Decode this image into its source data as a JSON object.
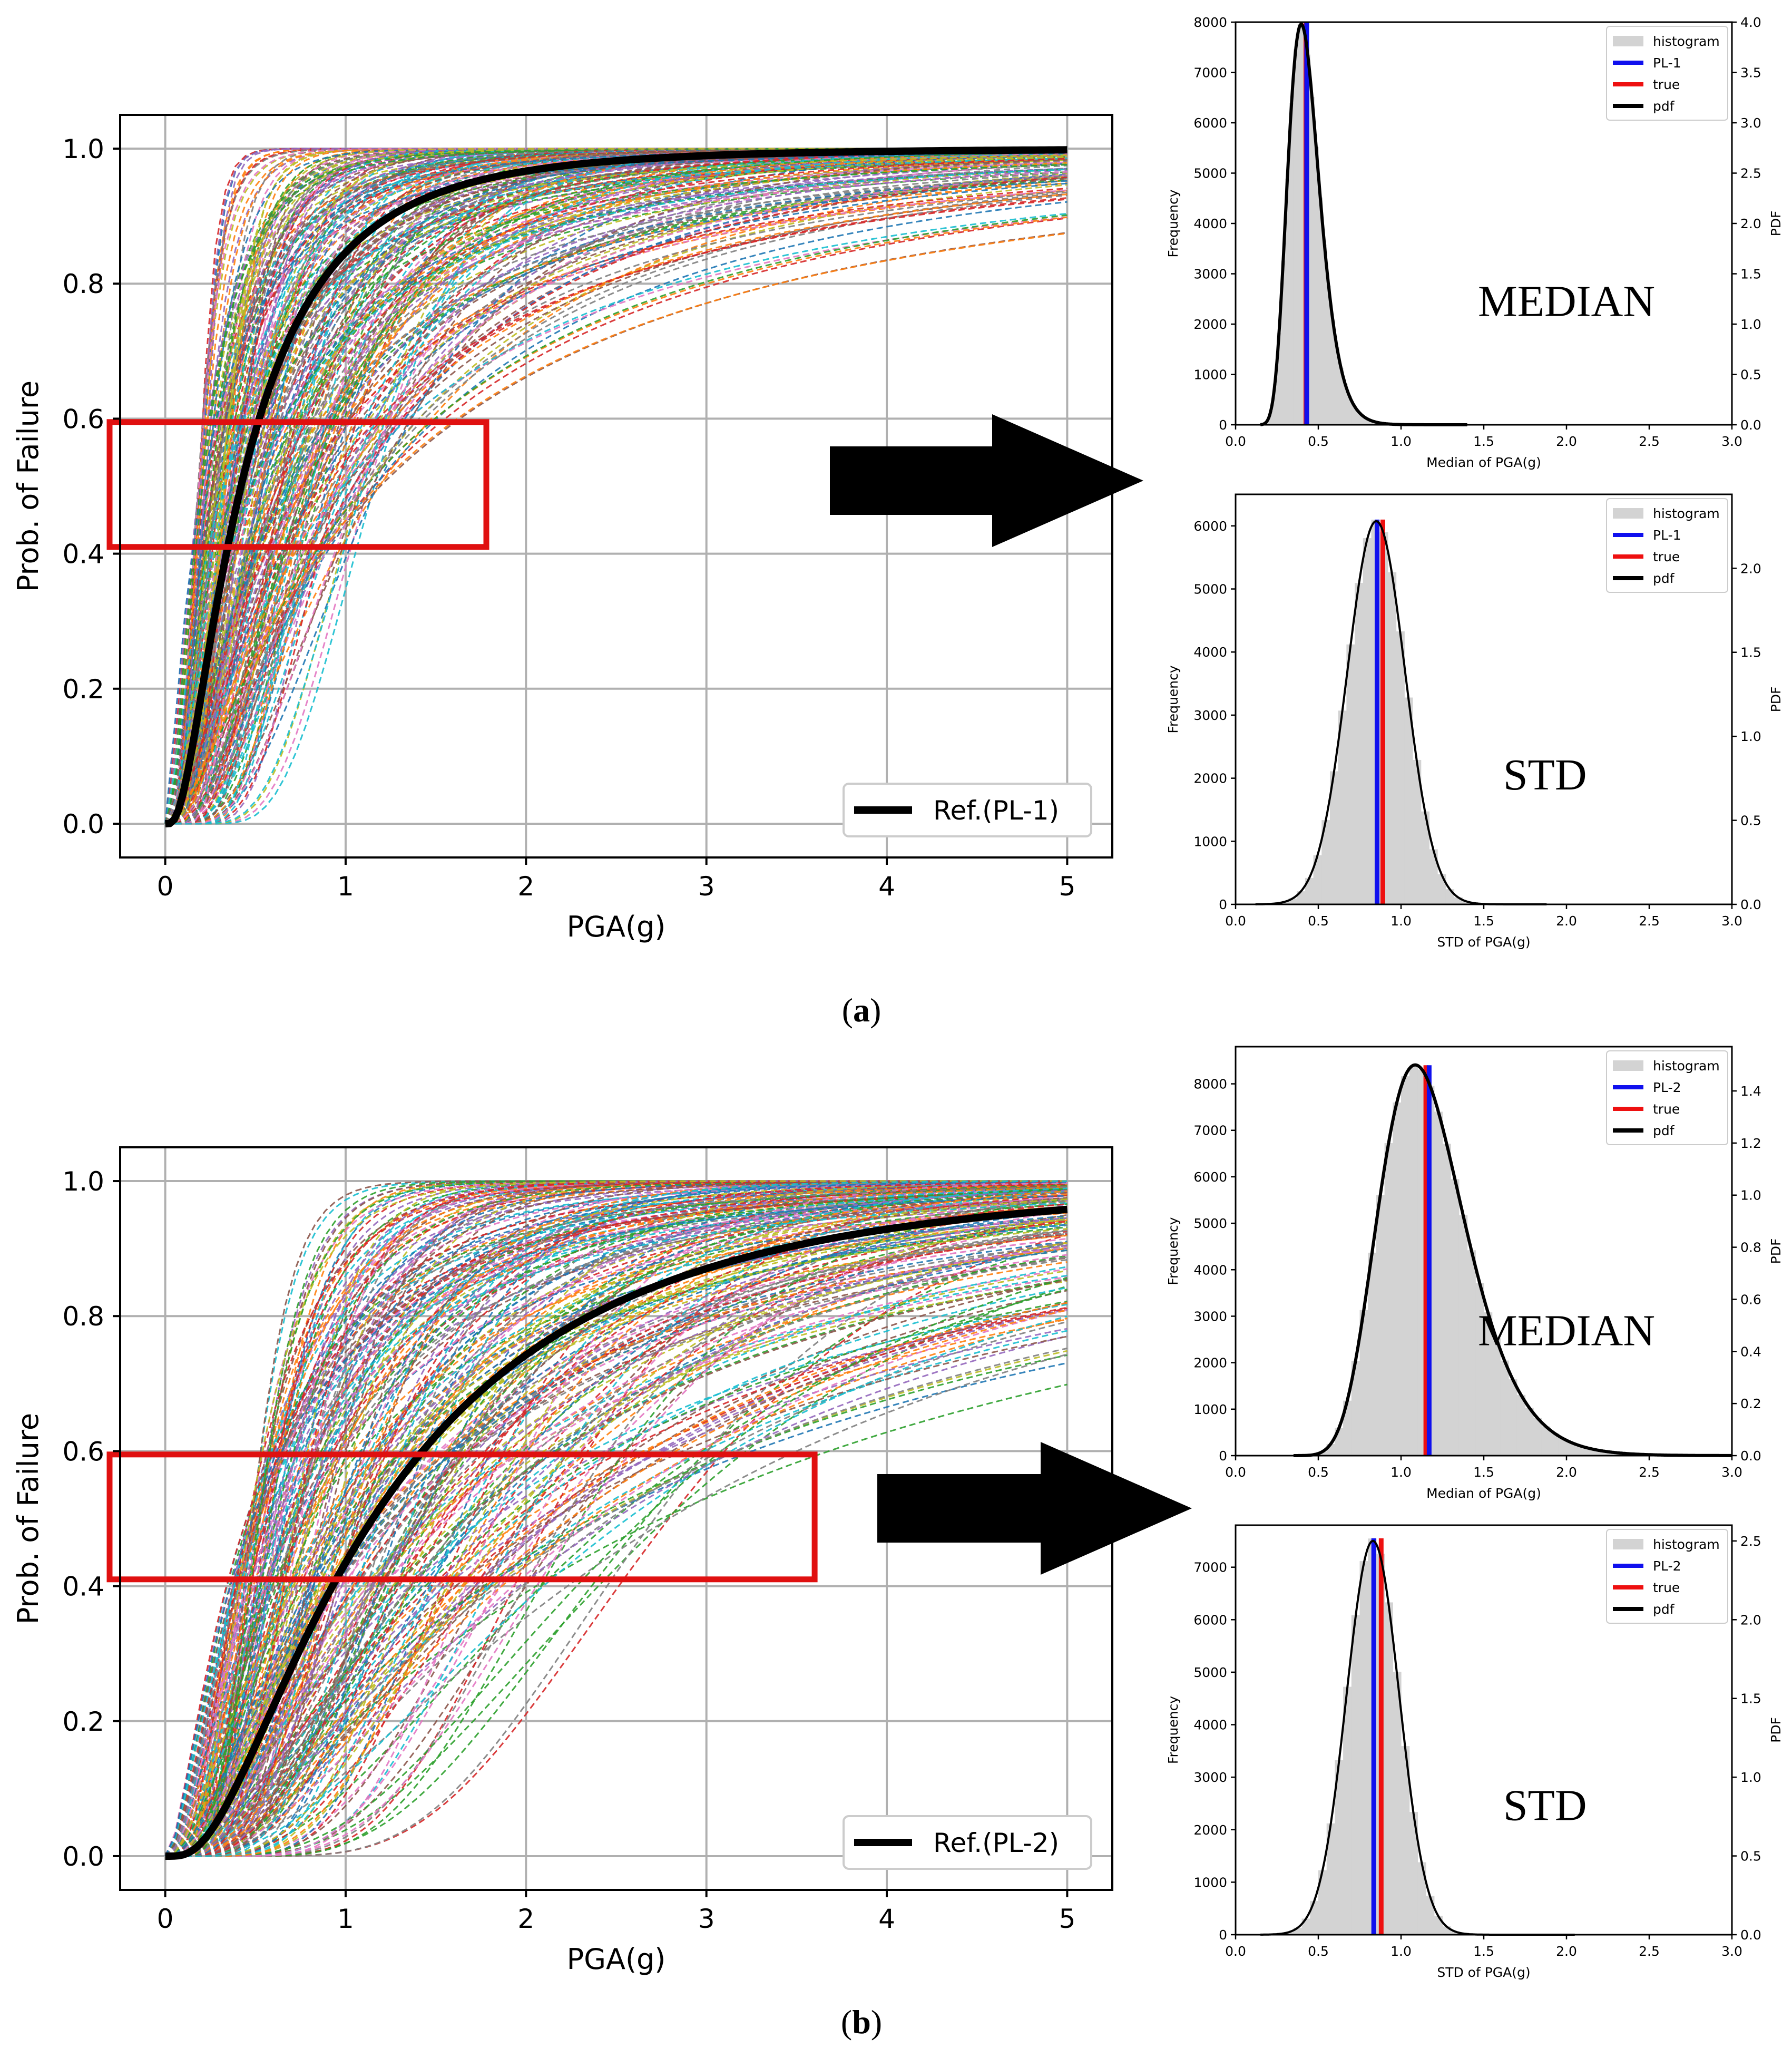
{
  "captions": {
    "a": {
      "open": "(",
      "letter": "a",
      "close": ")"
    },
    "b": {
      "open": "(",
      "letter": "b",
      "close": ")"
    }
  },
  "colors": {
    "ref": "#000000",
    "box": "#e01010",
    "arrow": "#000000",
    "hist": "#d3d3d3",
    "pl": "#1010ee",
    "true": "#ee1010",
    "pdf": "#000000",
    "grid": "#b0b0b0",
    "palette": [
      "#1f77b4",
      "#ff7f0e",
      "#2ca02c",
      "#d62728",
      "#9467bd",
      "#8c564b",
      "#e377c2",
      "#7f7f7f",
      "#bcbd22",
      "#17becf"
    ]
  },
  "chart_data": [
    {
      "id": "fragility-pl1",
      "panel": "a",
      "type": "line",
      "xlabel": "PGA(g)",
      "ylabel": "Prob. of Failure",
      "xlim": [
        -0.25,
        5.25
      ],
      "ylim": [
        -0.05,
        1.05
      ],
      "xticks": [
        0,
        1,
        2,
        3,
        4,
        5
      ],
      "yticks": [
        0.0,
        0.2,
        0.4,
        0.6,
        0.8,
        1.0
      ],
      "xtick_labels": [
        "0",
        "1",
        "2",
        "3",
        "4",
        "5"
      ],
      "ytick_labels": [
        "0.0",
        "0.2",
        "0.4",
        "0.6",
        "0.8",
        "1.0"
      ],
      "grid": true,
      "legend": "lower-right",
      "reference": {
        "name": "Ref.(PL-1)",
        "median": 0.42,
        "beta": 0.85
      },
      "ensemble": {
        "count": 260,
        "median_range": [
          0.18,
          1.2
        ],
        "beta_range": [
          0.35,
          1.3
        ],
        "seed": 11
      },
      "highlight_box": {
        "x": [
          -0.25,
          1.78
        ],
        "y": [
          0.41,
          0.595
        ]
      },
      "x_max": 5
    },
    {
      "id": "hist-median-pl1",
      "panel": "a",
      "type": "bar",
      "xlabel": "Median of PGA(g)",
      "ylabel": "Frequency",
      "y2label": "PDF",
      "xlim": [
        0.0,
        3.0
      ],
      "ylim": [
        0,
        8000
      ],
      "y2lim": [
        0,
        4.0
      ],
      "xticks": [
        0.0,
        0.5,
        1.0,
        1.5,
        2.0,
        2.5,
        3.0
      ],
      "xtick_labels": [
        "0.0",
        "0.5",
        "1.0",
        "1.5",
        "2.0",
        "2.5",
        "3.0"
      ],
      "yticks": [
        0,
        1000,
        2000,
        3000,
        4000,
        5000,
        6000,
        7000,
        8000
      ],
      "ytick_labels": [
        "0",
        "1000",
        "2000",
        "3000",
        "4000",
        "5000",
        "6000",
        "7000",
        "8000"
      ],
      "y2ticks": [
        0.0,
        0.5,
        1.0,
        1.5,
        2.0,
        2.5,
        3.0,
        3.5,
        4.0
      ],
      "y2tick_labels": [
        "0.0",
        "0.5",
        "1.0",
        "1.5",
        "2.0",
        "2.5",
        "3.0",
        "3.5",
        "4.0"
      ],
      "dist": {
        "kind": "lognormal",
        "median": 0.42,
        "sigma": 0.24,
        "peak_freq": 8000,
        "pdf_peak": 3.98,
        "range": [
          0.15,
          1.4
        ]
      },
      "bin_width": 0.025,
      "pl_value": 0.43,
      "true_value": 0.425,
      "legend": [
        "histogram",
        "PL-1",
        "true",
        "pdf"
      ],
      "label": "MEDIAN",
      "pdf_width": 6
    },
    {
      "id": "hist-std-pl1",
      "panel": "a",
      "type": "bar",
      "xlabel": "STD of PGA(g)",
      "ylabel": "Frequency",
      "y2label": "PDF",
      "xlim": [
        0.0,
        3.0
      ],
      "ylim": [
        0,
        6500
      ],
      "y2lim": [
        0,
        2.44
      ],
      "xticks": [
        0.0,
        0.5,
        1.0,
        1.5,
        2.0,
        2.5,
        3.0
      ],
      "xtick_labels": [
        "0.0",
        "0.5",
        "1.0",
        "1.5",
        "2.0",
        "2.5",
        "3.0"
      ],
      "yticks": [
        0,
        1000,
        2000,
        3000,
        4000,
        5000,
        6000
      ],
      "ytick_labels": [
        "0",
        "1000",
        "2000",
        "3000",
        "4000",
        "5000",
        "6000"
      ],
      "y2ticks": [
        0.0,
        0.5,
        1.0,
        1.5,
        2.0
      ],
      "y2tick_labels": [
        "0.0",
        "0.5",
        "1.0",
        "1.5",
        "2.0"
      ],
      "dist": {
        "kind": "normal",
        "mean": 0.85,
        "sd": 0.175,
        "peak_freq": 6100,
        "pdf_peak": 2.28,
        "range": [
          0.12,
          1.88
        ]
      },
      "bin_width": 0.05,
      "pl_value": 0.855,
      "true_value": 0.89,
      "legend": [
        "histogram",
        "PL-1",
        "true",
        "pdf"
      ],
      "label": "STD",
      "pdf_width": 4
    },
    {
      "id": "fragility-pl2",
      "panel": "b",
      "type": "line",
      "xlabel": "PGA(g)",
      "ylabel": "Prob. of Failure",
      "xlim": [
        -0.25,
        5.25
      ],
      "ylim": [
        -0.05,
        1.05
      ],
      "xticks": [
        0,
        1,
        2,
        3,
        4,
        5
      ],
      "yticks": [
        0.0,
        0.2,
        0.4,
        0.6,
        0.8,
        1.0
      ],
      "xtick_labels": [
        "0",
        "1",
        "2",
        "3",
        "4",
        "5"
      ],
      "ytick_labels": [
        "0.0",
        "0.2",
        "0.4",
        "0.6",
        "0.8",
        "1.0"
      ],
      "grid": true,
      "legend": "lower-right",
      "reference": {
        "name": "Ref.(PL-2)",
        "median": 1.15,
        "beta": 0.85
      },
      "ensemble": {
        "count": 260,
        "median_range": [
          0.45,
          2.8
        ],
        "beta_range": [
          0.35,
          1.2
        ],
        "seed": 23
      },
      "highlight_box": {
        "x": [
          -0.25,
          3.6
        ],
        "y": [
          0.41,
          0.595
        ]
      },
      "x_max": 5
    },
    {
      "id": "hist-median-pl2",
      "panel": "b",
      "type": "bar",
      "xlabel": "Median of PGA(g)",
      "ylabel": "Frequency",
      "y2label": "PDF",
      "xlim": [
        0.0,
        3.0
      ],
      "ylim": [
        0,
        8800
      ],
      "y2lim": [
        0,
        1.57
      ],
      "xticks": [
        0.0,
        0.5,
        1.0,
        1.5,
        2.0,
        2.5,
        3.0
      ],
      "xtick_labels": [
        "0.0",
        "0.5",
        "1.0",
        "1.5",
        "2.0",
        "2.5",
        "3.0"
      ],
      "yticks": [
        0,
        1000,
        2000,
        3000,
        4000,
        5000,
        6000,
        7000,
        8000
      ],
      "ytick_labels": [
        "0",
        "1000",
        "2000",
        "3000",
        "4000",
        "5000",
        "6000",
        "7000",
        "8000"
      ],
      "y2ticks": [
        0.0,
        0.2,
        0.4,
        0.6,
        0.8,
        1.0,
        1.2,
        1.4
      ],
      "y2tick_labels": [
        "0.0",
        "0.2",
        "0.4",
        "0.6",
        "0.8",
        "1.0",
        "1.2",
        "1.4"
      ],
      "dist": {
        "kind": "lognormal",
        "median": 1.15,
        "sigma": 0.24,
        "peak_freq": 8400,
        "pdf_peak": 1.5,
        "range": [
          0.35,
          3.0
        ]
      },
      "bin_width": 0.05,
      "pl_value": 1.17,
      "true_value": 1.15,
      "legend": [
        "histogram",
        "PL-2",
        "true",
        "pdf"
      ],
      "label": "MEDIAN",
      "pdf_width": 6
    },
    {
      "id": "hist-std-pl2",
      "panel": "b",
      "type": "bar",
      "xlabel": "STD of PGA(g)",
      "ylabel": "Frequency",
      "y2label": "PDF",
      "xlim": [
        0.0,
        3.0
      ],
      "ylim": [
        0,
        7800
      ],
      "y2lim": [
        0,
        2.6
      ],
      "xticks": [
        0.0,
        0.5,
        1.0,
        1.5,
        2.0,
        2.5,
        3.0
      ],
      "xtick_labels": [
        "0.0",
        "0.5",
        "1.0",
        "1.5",
        "2.0",
        "2.5",
        "3.0"
      ],
      "yticks": [
        0,
        1000,
        2000,
        3000,
        4000,
        5000,
        6000,
        7000
      ],
      "ytick_labels": [
        "0",
        "1000",
        "2000",
        "3000",
        "4000",
        "5000",
        "6000",
        "7000"
      ],
      "y2ticks": [
        0.0,
        0.5,
        1.0,
        1.5,
        2.0,
        2.5
      ],
      "y2tick_labels": [
        "0.0",
        "0.5",
        "1.0",
        "1.5",
        "2.0",
        "2.5"
      ],
      "dist": {
        "kind": "normal",
        "mean": 0.83,
        "sd": 0.16,
        "peak_freq": 7550,
        "pdf_peak": 2.5,
        "range": [
          0.15,
          2.05
        ]
      },
      "bin_width": 0.05,
      "pl_value": 0.835,
      "true_value": 0.88,
      "legend": [
        "histogram",
        "PL-2",
        "true",
        "pdf"
      ],
      "label": "STD",
      "pdf_width": 4
    }
  ]
}
